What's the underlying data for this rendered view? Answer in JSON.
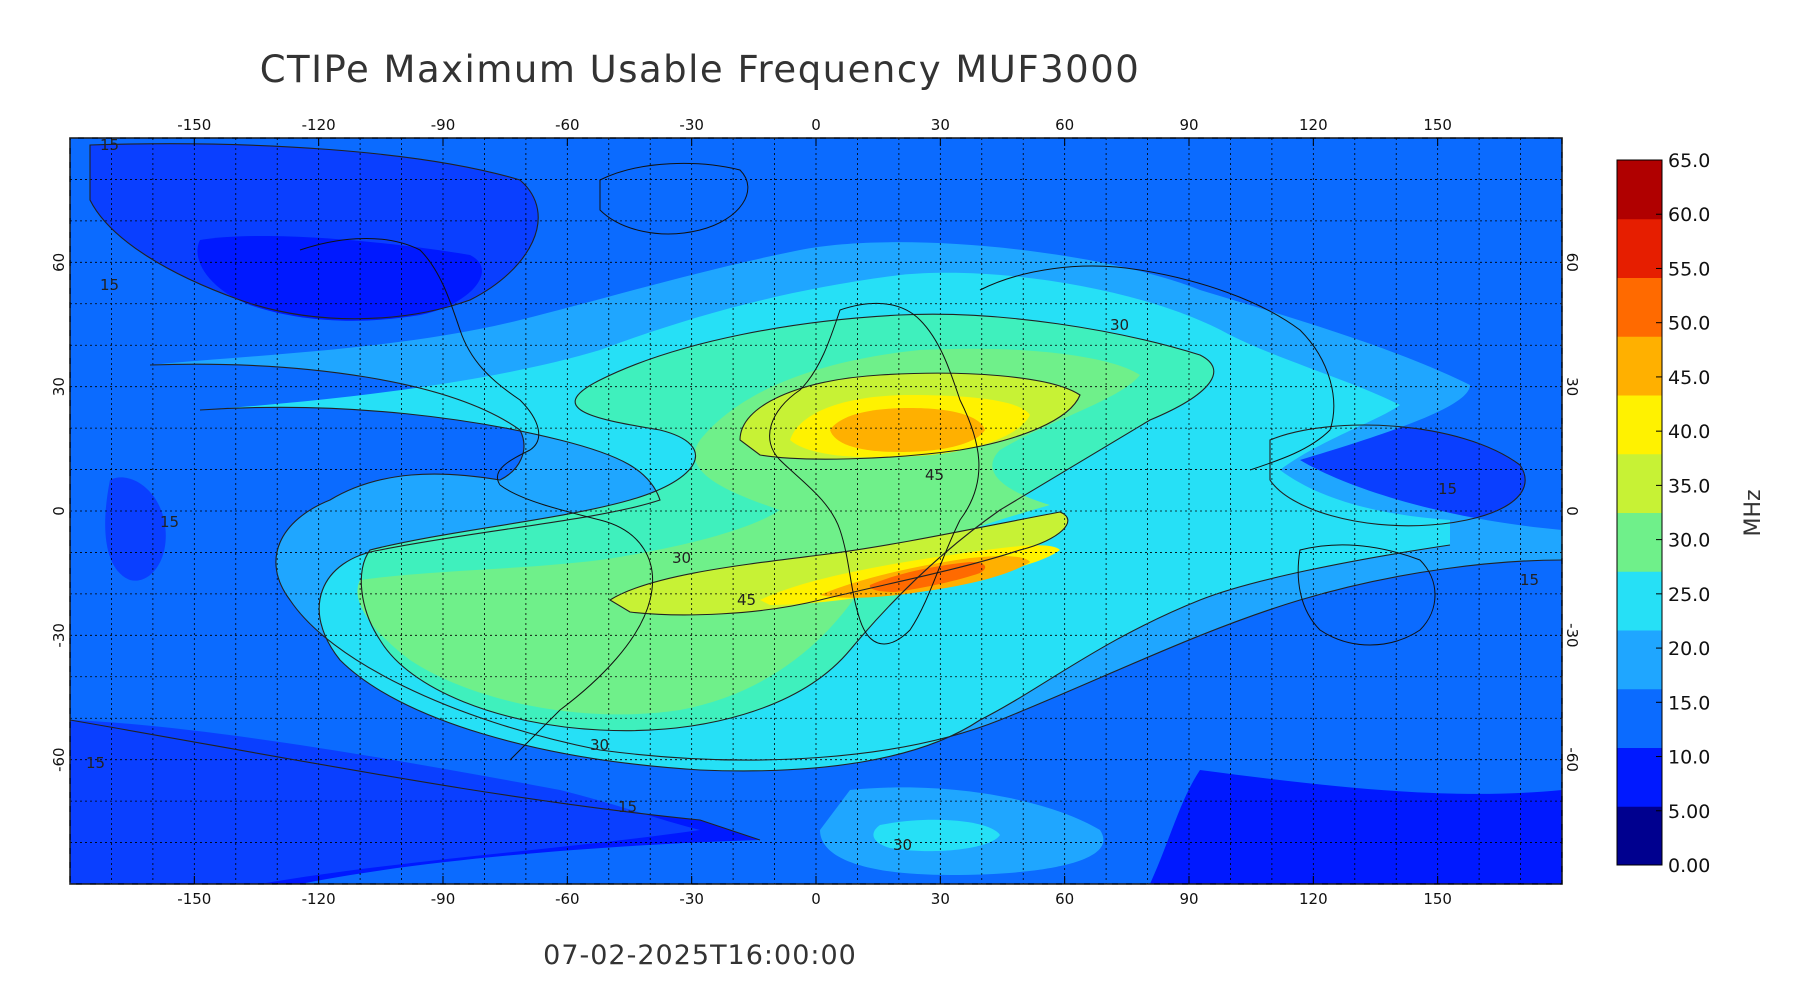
{
  "title": "CTIPe Maximum Usable Frequency MUF3000",
  "timestamp": "07-02-2025T16:00:00",
  "map": {
    "lon_range": [
      -180,
      180
    ],
    "lat_range": [
      -90,
      90
    ],
    "lon_ticks": [
      "-150",
      "-120",
      "-90",
      "-60",
      "-30",
      "0",
      "30",
      "60",
      "90",
      "120",
      "150"
    ],
    "lat_ticks_left": [
      "60",
      "30",
      "0",
      "-30",
      "-60"
    ],
    "lat_ticks_right": [
      "60",
      "30",
      "0",
      "-30",
      "-60"
    ],
    "grid": true,
    "contour_labels": [
      "15",
      "15",
      "30",
      "45",
      "30",
      "45",
      "30",
      "15",
      "15",
      "15",
      "15",
      "30",
      "15"
    ]
  },
  "colorbar": {
    "unit": "MHz",
    "labels": [
      "65.0",
      "60.0",
      "55.0",
      "50.0",
      "45.0",
      "40.0",
      "35.0",
      "30.0",
      "25.0",
      "20.0",
      "15.0",
      "10.0",
      "5.00",
      "0.00"
    ],
    "min": 0,
    "max": 65,
    "colors": [
      "#00008f",
      "#0019ff",
      "#0b6bff",
      "#1fa6ff",
      "#26e0f6",
      "#6ff08a",
      "#c7f235",
      "#fff200",
      "#ffb000",
      "#ff6a00",
      "#e61e00",
      "#b00000"
    ]
  },
  "chart_data": {
    "type": "heatmap",
    "title": "CTIPe Maximum Usable Frequency MUF3000",
    "subtitle": "07-02-2025T16:00:00",
    "xlabel": "",
    "ylabel": "",
    "x_range": [
      -180,
      180
    ],
    "y_range": [
      -90,
      90
    ],
    "colorbar_label": "MHz",
    "colorbar_range": [
      0,
      65
    ],
    "grid": true,
    "features": [
      {
        "name": "max-north-africa",
        "lon": 25,
        "lat": 17,
        "value_mhz": 52
      },
      {
        "name": "max-south-africa",
        "lon": 25,
        "lat": -13,
        "value_mhz": 55
      },
      {
        "name": "low-west-pacific",
        "lon": 145,
        "lat": 10,
        "value_mhz": 12
      },
      {
        "name": "low-north-america",
        "lon": -120,
        "lat": 65,
        "value_mhz": 10
      },
      {
        "name": "low-south-pacific",
        "lon": -120,
        "lat": -75,
        "value_mhz": 8
      }
    ]
  }
}
